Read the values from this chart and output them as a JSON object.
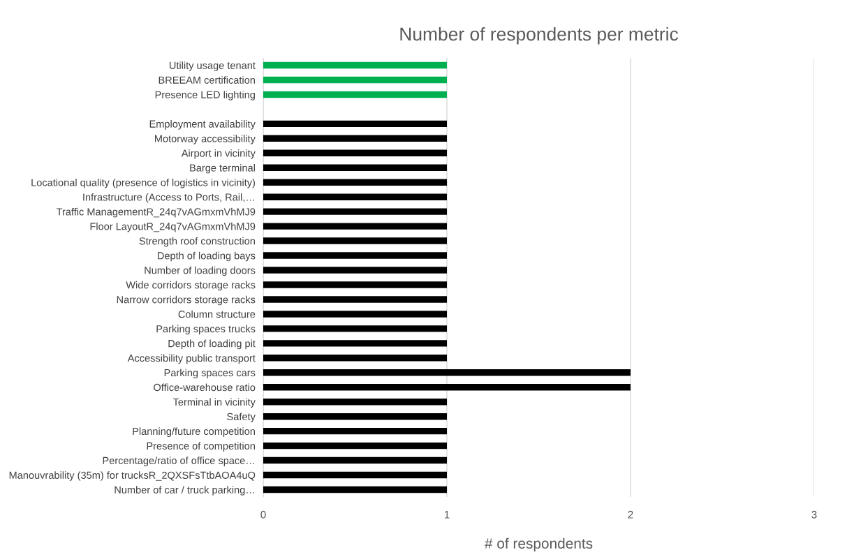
{
  "chart_data": {
    "type": "bar",
    "orientation": "horizontal",
    "title": "Number of respondents per metric",
    "xlabel": "# of respondents",
    "categories": [
      "Utility usage tenant",
      "BREEAM certification",
      "Presence LED lighting",
      null,
      "Employment availability",
      "Motorway accessibility",
      "Airport in vicinity",
      "Barge terminal",
      "Locational quality (presence of logistics in vicinity)",
      "Infrastructure (Access to Ports, Rail,…",
      "Traffic ManagementR_24q7vAGmxmVhMJ9",
      "Floor LayoutR_24q7vAGmxmVhMJ9",
      "Strength roof construction",
      "Depth of loading bays",
      "Number of loading doors",
      "Wide corridors storage racks",
      "Narrow corridors storage racks",
      "Column structure",
      "Parking spaces trucks",
      "Depth of loading pit",
      "Accessibility public transport",
      "Parking spaces cars",
      "Office-warehouse ratio",
      "Terminal in vicinity",
      "Safety",
      "Planning/future competition",
      "Presence of competition",
      "Percentage/ratio of office space…",
      "Manouvrability (35m) for trucksR_2QXSFsTtbAOA4uQ",
      "Number of car / truck parking…"
    ],
    "values": [
      1,
      1,
      1,
      null,
      1,
      1,
      1,
      1,
      1,
      1,
      1,
      1,
      1,
      1,
      1,
      1,
      1,
      1,
      1,
      1,
      1,
      2,
      2,
      1,
      1,
      1,
      1,
      1,
      1,
      1
    ],
    "colors": [
      "#00b050",
      "#00b050",
      "#00b050",
      "#000000",
      "#000000",
      "#000000",
      "#000000",
      "#000000",
      "#000000",
      "#000000",
      "#000000",
      "#000000",
      "#000000",
      "#000000",
      "#000000",
      "#000000",
      "#000000",
      "#000000",
      "#000000",
      "#000000",
      "#000000",
      "#000000",
      "#000000",
      "#000000",
      "#000000",
      "#000000",
      "#000000",
      "#000000",
      "#000000",
      "#000000"
    ],
    "xlim": [
      0,
      3
    ],
    "xticks": [
      0,
      1,
      2,
      3
    ],
    "grid": "x",
    "legend": false
  }
}
